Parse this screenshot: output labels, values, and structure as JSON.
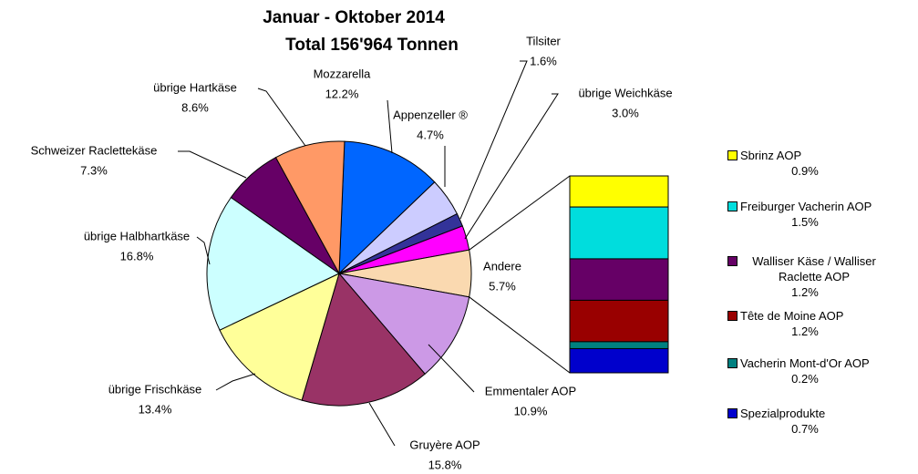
{
  "chart_data": {
    "type": "pie",
    "title": "Januar - Oktober 2014",
    "subtitle": "Total 156'964 Tonnen",
    "categories": [
      "Mozzarella",
      "Appenzeller ®",
      "Tilsiter",
      "übrige Weichkäse",
      "Andere",
      "Emmentaler AOP",
      "Gruyère AOP",
      "übrige Frischkäse",
      "übrige Halbhartkäse",
      "Schweizer Raclettekäse",
      "übrige Hartkäse"
    ],
    "values": [
      12.2,
      4.7,
      1.6,
      3.0,
      5.7,
      10.9,
      15.8,
      13.4,
      16.8,
      7.3,
      8.6
    ],
    "value_labels": [
      "12.2%",
      "4.7%",
      "1.6%",
      "3.0%",
      "5.7%",
      "10.9%",
      "15.8%",
      "13.4%",
      "16.8%",
      "7.3%",
      "8.6%"
    ],
    "colors": [
      "#0066ff",
      "#ccccff",
      "#333399",
      "#ff00ff",
      "#fad9b0",
      "#cc99e6",
      "#993366",
      "#ffff99",
      "#ccffff",
      "#660066",
      "#ff9966"
    ],
    "bar_of_pie": {
      "categories": [
        "Sbrinz AOP",
        "Freiburger Vacherin AOP",
        "Walliser Käse / Walliser Raclette AOP",
        "Tête de Moine AOP",
        "Vacherin Mont-d'Or AOP",
        "Spezialprodukte"
      ],
      "values": [
        0.9,
        1.5,
        1.2,
        1.2,
        0.2,
        0.7
      ],
      "value_labels": [
        "0.9%",
        "1.5%",
        "1.2%",
        "1.2%",
        "0.2%",
        "0.7%"
      ],
      "colors": [
        "#ffff00",
        "#00dddd",
        "#660066",
        "#990000",
        "#008080",
        "#0000cc"
      ]
    }
  }
}
